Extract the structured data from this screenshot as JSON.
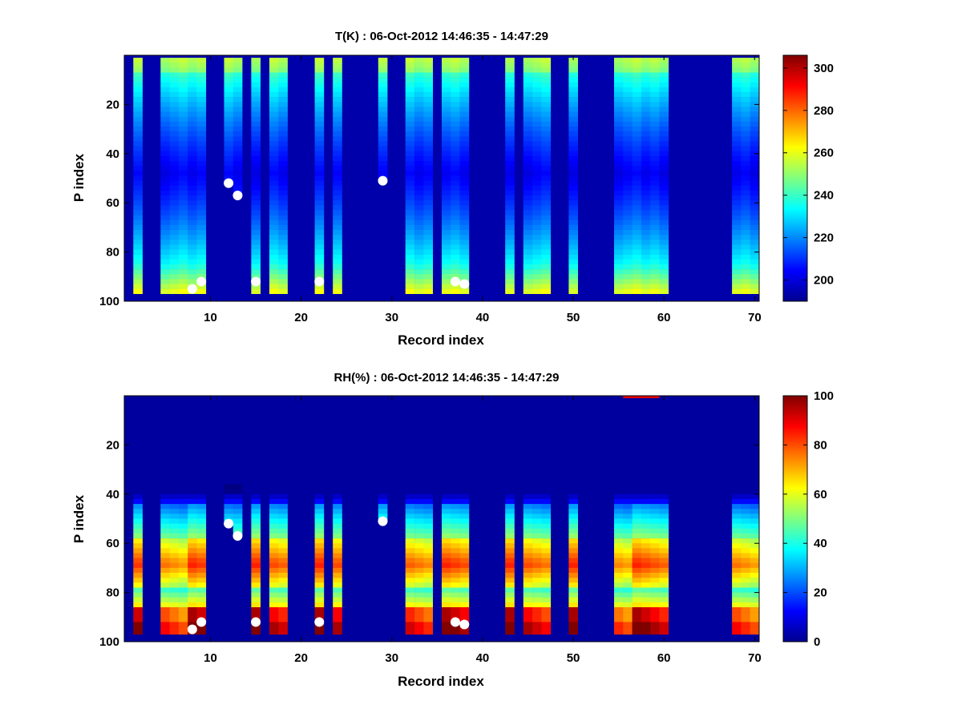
{
  "colors": {
    "background": "#ffffff",
    "axis": "#000000",
    "marker": "#ffffff",
    "colormap": "jet"
  },
  "chart_data": [
    {
      "type": "heatmap",
      "title": "T(K) : 06-Oct-2012 14:46:35 - 14:47:29",
      "xlabel": "Record index",
      "ylabel": "P index",
      "xlim": [
        0.5,
        70.5
      ],
      "ylim": [
        100,
        0
      ],
      "xticks": [
        10,
        20,
        30,
        40,
        50,
        60,
        70
      ],
      "yticks": [
        20,
        40,
        60,
        80,
        100
      ],
      "colorbar": {
        "min": 190,
        "max": 306,
        "ticks": [
          200,
          220,
          240,
          260,
          280,
          300
        ]
      },
      "fill_value": 195,
      "record_groups": [
        {
          "records": [
            2
          ],
          "top": 1,
          "bottom": 97,
          "profile": "temperature",
          "gap_bottom_value": null
        },
        {
          "records": [
            5,
            6,
            7,
            8,
            9
          ],
          "top": 1,
          "bottom": 97,
          "profile": "temperature"
        },
        {
          "records": [
            12
          ],
          "top": 1,
          "bottom": 52,
          "profile": "temperature"
        },
        {
          "records": [
            13
          ],
          "top": 1,
          "bottom": 57,
          "profile": "temperature"
        },
        {
          "records": [
            15
          ],
          "top": 1,
          "bottom": 97,
          "profile": "temperature"
        },
        {
          "records": [
            17,
            18
          ],
          "top": 1,
          "bottom": 97,
          "profile": "temperature"
        },
        {
          "records": [
            22
          ],
          "top": 1,
          "bottom": 97,
          "profile": "temperature"
        },
        {
          "records": [
            24
          ],
          "top": 1,
          "bottom": 97,
          "profile": "temperature"
        },
        {
          "records": [
            29
          ],
          "top": 1,
          "bottom": 51,
          "profile": "temperature"
        },
        {
          "records": [
            32,
            33,
            34
          ],
          "top": 1,
          "bottom": 97,
          "profile": "temperature"
        },
        {
          "records": [
            36,
            37,
            38
          ],
          "top": 1,
          "bottom": 97,
          "profile": "temperature"
        },
        {
          "records": [
            43
          ],
          "top": 1,
          "bottom": 97,
          "profile": "temperature"
        },
        {
          "records": [
            45,
            46,
            47
          ],
          "top": 1,
          "bottom": 97,
          "profile": "temperature"
        },
        {
          "records": [
            50
          ],
          "top": 1,
          "bottom": 97,
          "profile": "temperature"
        },
        {
          "records": [
            55,
            56,
            57,
            58,
            59,
            60
          ],
          "top": 1,
          "bottom": 97,
          "profile": "temperature"
        },
        {
          "records": [
            68,
            69,
            70
          ],
          "top": 1,
          "bottom": 97,
          "profile": "temperature"
        }
      ],
      "markers": [
        {
          "x": 8,
          "y": 95
        },
        {
          "x": 9,
          "y": 92
        },
        {
          "x": 12,
          "y": 52
        },
        {
          "x": 13,
          "y": 57
        },
        {
          "x": 15,
          "y": 92
        },
        {
          "x": 22,
          "y": 92
        },
        {
          "x": 29,
          "y": 51
        },
        {
          "x": 37,
          "y": 92
        },
        {
          "x": 38,
          "y": 93
        }
      ]
    },
    {
      "type": "heatmap",
      "title": "RH(%) : 06-Oct-2012 14:46:35 - 14:47:29",
      "xlabel": "Record index",
      "ylabel": "P index",
      "xlim": [
        0.5,
        70.5
      ],
      "ylim": [
        100,
        0
      ],
      "xticks": [
        10,
        20,
        30,
        40,
        50,
        60,
        70
      ],
      "yticks": [
        20,
        40,
        60,
        80,
        100
      ],
      "colorbar": {
        "min": 0,
        "max": 100,
        "ticks": [
          0,
          20,
          40,
          60,
          80,
          100
        ]
      },
      "fill_value": 3,
      "record_groups": [
        {
          "records": [
            2
          ],
          "top": 40,
          "bottom": 97,
          "profile": "humidity"
        },
        {
          "records": [
            5,
            6,
            7,
            8,
            9
          ],
          "top": 40,
          "bottom": 97,
          "profile": "humidity"
        },
        {
          "records": [
            12
          ],
          "top": 36,
          "bottom": 52,
          "profile": "humidity"
        },
        {
          "records": [
            13
          ],
          "top": 36,
          "bottom": 57,
          "profile": "humidity"
        },
        {
          "records": [
            15
          ],
          "top": 40,
          "bottom": 97,
          "profile": "humidity"
        },
        {
          "records": [
            17,
            18
          ],
          "top": 40,
          "bottom": 97,
          "profile": "humidity"
        },
        {
          "records": [
            22
          ],
          "top": 40,
          "bottom": 97,
          "profile": "humidity"
        },
        {
          "records": [
            24
          ],
          "top": 40,
          "bottom": 97,
          "profile": "humidity"
        },
        {
          "records": [
            29
          ],
          "top": 40,
          "bottom": 51,
          "profile": "humidity"
        },
        {
          "records": [
            32,
            33,
            34
          ],
          "top": 40,
          "bottom": 97,
          "profile": "humidity"
        },
        {
          "records": [
            36,
            37,
            38
          ],
          "top": 40,
          "bottom": 97,
          "profile": "humidity"
        },
        {
          "records": [
            43
          ],
          "top": 40,
          "bottom": 97,
          "profile": "humidity"
        },
        {
          "records": [
            45,
            46,
            47
          ],
          "top": 40,
          "bottom": 97,
          "profile": "humidity"
        },
        {
          "records": [
            50
          ],
          "top": 40,
          "bottom": 97,
          "profile": "humidity"
        },
        {
          "records": [
            55,
            56,
            57,
            58,
            59,
            60
          ],
          "top": 40,
          "bottom": 97,
          "profile": "humidity"
        },
        {
          "records": [
            68,
            69,
            70
          ],
          "top": 40,
          "bottom": 97,
          "profile": "humidity"
        }
      ],
      "top_patch": {
        "records": [
          56,
          57,
          58,
          59
        ],
        "top": 0,
        "bottom": 1,
        "value": 90
      },
      "markers": [
        {
          "x": 8,
          "y": 95
        },
        {
          "x": 9,
          "y": 92
        },
        {
          "x": 12,
          "y": 52
        },
        {
          "x": 13,
          "y": 57
        },
        {
          "x": 15,
          "y": 92
        },
        {
          "x": 22,
          "y": 92
        },
        {
          "x": 29,
          "y": 51
        },
        {
          "x": 37,
          "y": 92
        },
        {
          "x": 38,
          "y": 93
        }
      ]
    }
  ]
}
